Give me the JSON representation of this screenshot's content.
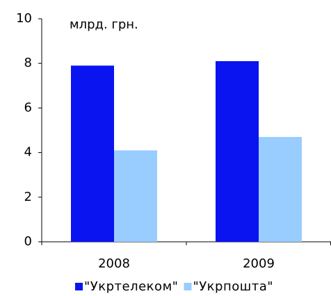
{
  "chart_data": {
    "type": "bar",
    "annotation": "млрд. грн.",
    "categories": [
      "2008",
      "2009"
    ],
    "series": [
      {
        "name": "\"Укртелеком\"",
        "color": "#0a14f0",
        "values": [
          7.9,
          8.1
        ]
      },
      {
        "name": "\"Укрпошта\"",
        "color": "#99ccff",
        "values": [
          4.1,
          4.7
        ]
      }
    ],
    "ylim": [
      0,
      10
    ],
    "yticks": [
      0,
      2,
      4,
      6,
      8,
      10
    ],
    "grid": false,
    "legend": "bottom"
  }
}
